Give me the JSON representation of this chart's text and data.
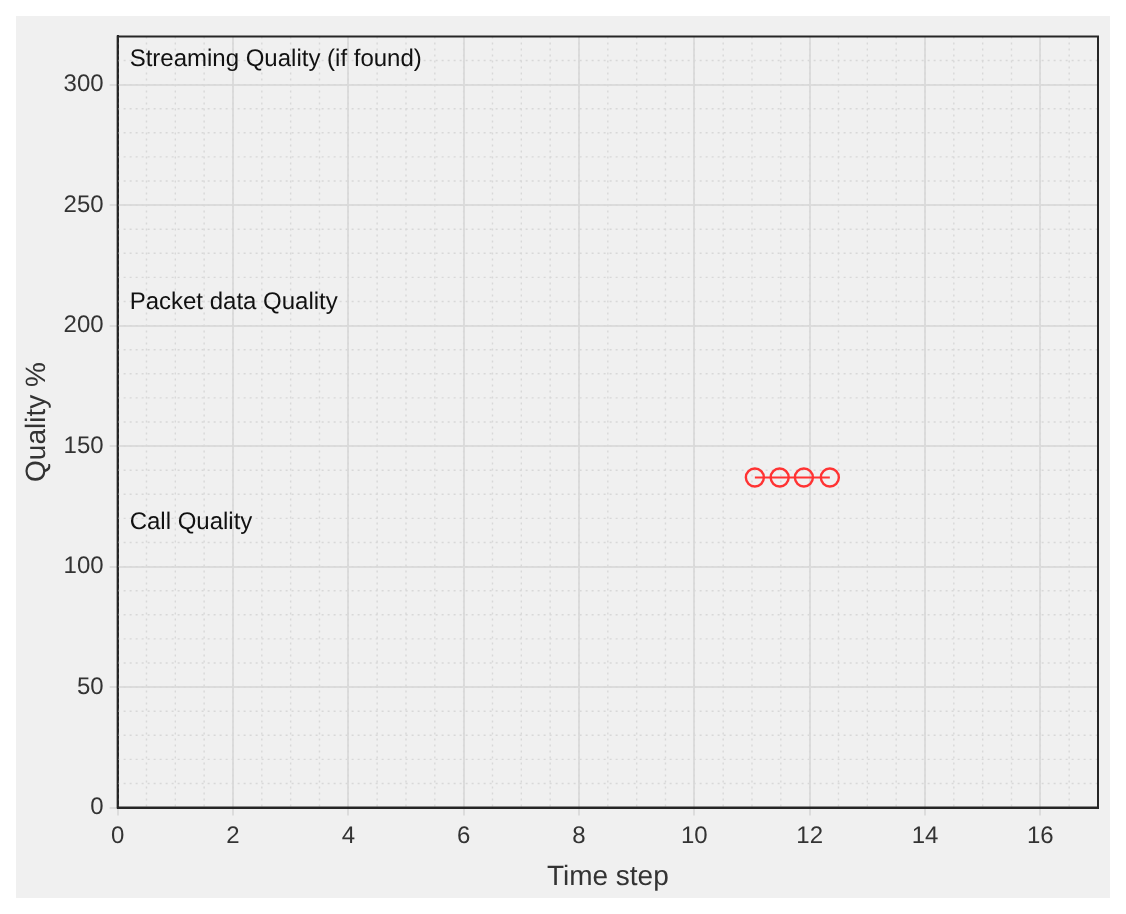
{
  "chart_data": {
    "type": "line",
    "xlabel": "Time step",
    "ylabel": "Quality %",
    "x": [
      11.05,
      11.48,
      11.9,
      12.35
    ],
    "series": [
      {
        "color": "#ff3333",
        "values": [
          137,
          137,
          137,
          137
        ]
      }
    ],
    "xlim": [
      0,
      17
    ],
    "ylim": [
      0,
      320
    ],
    "xticks": [
      0,
      2,
      4,
      6,
      8,
      10,
      12,
      14,
      16
    ],
    "yticks": [
      0,
      50,
      100,
      150,
      200,
      250,
      300
    ],
    "grid": true,
    "marker": "circle",
    "line_style": "solid",
    "legend": false,
    "annotations": [
      "Streaming Quality (if found)",
      "Packet data Quality",
      "Call Quality"
    ]
  }
}
